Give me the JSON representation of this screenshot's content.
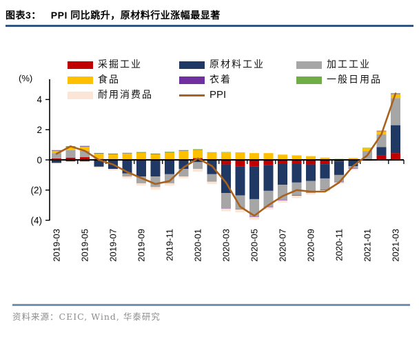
{
  "header": {
    "figure_label": "图表3：",
    "title": "PPI 同比跳升，原材料行业涨幅最显著"
  },
  "footer": {
    "source": "资料来源：CEIC, Wind,  华泰研究"
  },
  "colors": {
    "title_underline": "#31557F",
    "footer_rule": "#7191B6",
    "axis": "#000000"
  },
  "chart_data": {
    "type": "bar",
    "subtype": "stacked-bars-with-line-overlay",
    "title": "PPI 同比跳升，原材料行业涨幅最显著",
    "unit_label": "(%)",
    "grid": false,
    "legend_position": "top",
    "ylim": [
      -4,
      4.6
    ],
    "y_ticks": [
      {
        "value": 4,
        "label": "4"
      },
      {
        "value": 2,
        "label": "2"
      },
      {
        "value": 0,
        "label": "0"
      },
      {
        "value": -2,
        "label": "(2)"
      },
      {
        "value": -4,
        "label": "(4)"
      }
    ],
    "x": [
      "2019-03",
      "2019-04",
      "2019-05",
      "2019-06",
      "2019-07",
      "2019-08",
      "2019-09",
      "2019-10",
      "2019-11",
      "2019-12",
      "2020-01",
      "2020-02",
      "2020-03",
      "2020-04",
      "2020-05",
      "2020-06",
      "2020-07",
      "2020-08",
      "2020-09",
      "2020-10",
      "2020-11",
      "2020-12",
      "2021-01",
      "2021-02",
      "2021-03"
    ],
    "x_tick_labels": [
      "2019-03",
      "2019-05",
      "2019-07",
      "2019-09",
      "2019-11",
      "2020-01",
      "2020-03",
      "2020-05",
      "2020-07",
      "2020-09",
      "2020-11",
      "2021-01",
      "2021-03"
    ],
    "series": [
      {
        "name": "采掘工业",
        "color": "#C00000",
        "values": [
          0.1,
          0.15,
          0.18,
          0.06,
          0.05,
          0.02,
          0.02,
          0.02,
          0.02,
          0.05,
          0.12,
          0.02,
          -0.3,
          -0.45,
          -0.45,
          -0.35,
          -0.25,
          -0.25,
          -0.3,
          -0.28,
          -0.1,
          -0.02,
          0.02,
          0.3,
          0.45
        ]
      },
      {
        "name": "原材料工业",
        "color": "#1F3864",
        "values": [
          -0.2,
          -0.1,
          -0.1,
          -0.45,
          -0.6,
          -0.9,
          -1.1,
          -1.1,
          -0.95,
          -0.6,
          -0.15,
          -0.95,
          -1.9,
          -1.9,
          -2.15,
          -1.7,
          -1.4,
          -1.25,
          -1.1,
          -0.95,
          -0.9,
          -0.4,
          0.02,
          0.55,
          1.85
        ]
      },
      {
        "name": "加工工业",
        "color": "#A6A6A6",
        "values": [
          0.35,
          0.5,
          0.42,
          0.02,
          0.02,
          -0.2,
          -0.45,
          -0.7,
          -0.6,
          -0.5,
          -0.45,
          -0.5,
          -1.0,
          -0.9,
          -1.15,
          -1.05,
          -1.0,
          -0.85,
          -0.75,
          -0.75,
          -0.45,
          -0.15,
          0.55,
          0.85,
          1.8
        ]
      },
      {
        "name": "食品",
        "color": "#FFC000",
        "values": [
          0.15,
          0.2,
          0.27,
          0.33,
          0.3,
          0.4,
          0.45,
          0.35,
          0.47,
          0.55,
          0.55,
          0.47,
          0.5,
          0.5,
          0.45,
          0.45,
          0.35,
          0.3,
          0.25,
          0.15,
          0.05,
          0.1,
          0.2,
          0.2,
          0.25
        ]
      },
      {
        "name": "衣着",
        "color": "#7030A0",
        "values": [
          0.03,
          0.03,
          0.03,
          0.02,
          0.02,
          0.02,
          0.02,
          0.02,
          0.02,
          0.02,
          0.02,
          0.0,
          -0.02,
          -0.03,
          -0.03,
          -0.03,
          -0.03,
          -0.03,
          -0.03,
          -0.03,
          -0.03,
          -0.02,
          0.0,
          0.02,
          0.02
        ]
      },
      {
        "name": "一般日用品",
        "color": "#70AD47",
        "values": [
          0.02,
          0.03,
          0.03,
          0.03,
          0.03,
          0.03,
          0.03,
          0.03,
          0.03,
          0.03,
          0.02,
          0.02,
          0.02,
          0.0,
          0.0,
          0.0,
          0.0,
          0.0,
          0.0,
          0.0,
          0.02,
          0.02,
          0.02,
          0.02,
          0.05
        ]
      },
      {
        "name": "耐用消费品",
        "color": "#FBE5D6",
        "values": [
          -0.05,
          -0.05,
          -0.05,
          -0.08,
          -0.1,
          -0.12,
          -0.15,
          -0.18,
          -0.15,
          -0.12,
          -0.18,
          -0.15,
          -0.18,
          -0.2,
          -0.18,
          -0.15,
          -0.15,
          -0.15,
          -0.12,
          -0.1,
          -0.1,
          -0.08,
          -0.1,
          -0.05,
          -0.1
        ]
      }
    ],
    "line": {
      "name": "PPI",
      "color": "#A9611C",
      "values": [
        0.4,
        0.9,
        0.6,
        0.0,
        -0.3,
        -0.8,
        -1.2,
        -1.6,
        -1.4,
        -0.5,
        0.1,
        -0.4,
        -1.5,
        -3.1,
        -3.7,
        -3.0,
        -2.4,
        -2.0,
        -2.1,
        -2.1,
        -1.5,
        -0.4,
        0.3,
        1.7,
        4.4
      ]
    }
  }
}
